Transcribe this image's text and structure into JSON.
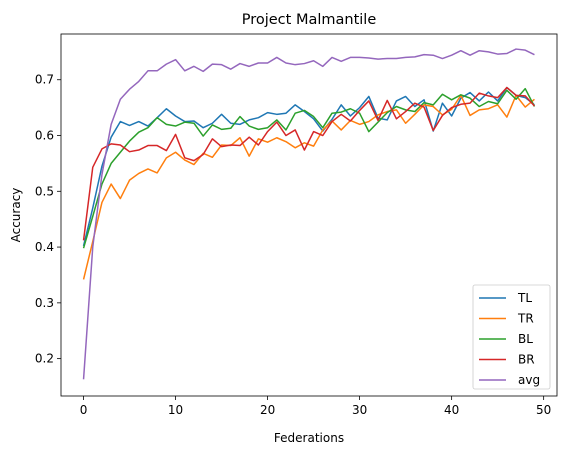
{
  "chart_data": {
    "type": "line",
    "title": "Project Malmantile",
    "xlabel": "Federations",
    "ylabel": "Accuracy",
    "xlim": [
      -2.45,
      51.45
    ],
    "ylim": [
      0.133,
      0.782
    ],
    "xticks": [
      0,
      10,
      20,
      30,
      40,
      50
    ],
    "yticks": [
      0.2,
      0.3,
      0.4,
      0.5,
      0.6,
      0.7
    ],
    "xtick_labels": [
      "0",
      "10",
      "20",
      "30",
      "40",
      "50"
    ],
    "ytick_labels": [
      "0.2",
      "0.3",
      "0.4",
      "0.5",
      "0.6",
      "0.7"
    ],
    "grid": false,
    "legend_position": "lower-right",
    "x": [
      0,
      1,
      2,
      3,
      4,
      5,
      6,
      7,
      8,
      9,
      10,
      11,
      12,
      13,
      14,
      15,
      16,
      17,
      18,
      19,
      20,
      21,
      22,
      23,
      24,
      25,
      26,
      27,
      28,
      29,
      30,
      31,
      32,
      33,
      34,
      35,
      36,
      37,
      38,
      39,
      40,
      41,
      42,
      43,
      44,
      45,
      46,
      47,
      48,
      49
    ],
    "series": [
      {
        "name": "TL",
        "color": "#1f77b4",
        "values": [
          0.402,
          0.47,
          0.545,
          0.597,
          0.625,
          0.618,
          0.625,
          0.617,
          0.632,
          0.648,
          0.635,
          0.625,
          0.626,
          0.614,
          0.622,
          0.638,
          0.622,
          0.62,
          0.628,
          0.632,
          0.641,
          0.638,
          0.64,
          0.655,
          0.643,
          0.63,
          0.608,
          0.629,
          0.655,
          0.635,
          0.65,
          0.67,
          0.631,
          0.628,
          0.662,
          0.67,
          0.652,
          0.664,
          0.608,
          0.658,
          0.635,
          0.667,
          0.677,
          0.662,
          0.678,
          0.662,
          0.686,
          0.672,
          0.668,
          0.655
        ]
      },
      {
        "name": "TR",
        "color": "#ff7f0e",
        "values": [
          0.342,
          0.41,
          0.48,
          0.513,
          0.487,
          0.52,
          0.532,
          0.54,
          0.533,
          0.56,
          0.57,
          0.556,
          0.548,
          0.568,
          0.561,
          0.583,
          0.582,
          0.596,
          0.563,
          0.594,
          0.588,
          0.596,
          0.589,
          0.578,
          0.587,
          0.581,
          0.61,
          0.626,
          0.61,
          0.627,
          0.62,
          0.625,
          0.637,
          0.643,
          0.646,
          0.622,
          0.638,
          0.655,
          0.652,
          0.637,
          0.647,
          0.672,
          0.636,
          0.646,
          0.648,
          0.655,
          0.633,
          0.672,
          0.651,
          0.665
        ]
      },
      {
        "name": "BL",
        "color": "#2ca02c",
        "values": [
          0.398,
          0.455,
          0.513,
          0.55,
          0.57,
          0.59,
          0.606,
          0.614,
          0.632,
          0.62,
          0.617,
          0.624,
          0.622,
          0.599,
          0.619,
          0.611,
          0.613,
          0.634,
          0.617,
          0.611,
          0.614,
          0.628,
          0.61,
          0.64,
          0.645,
          0.634,
          0.614,
          0.64,
          0.642,
          0.648,
          0.64,
          0.607,
          0.624,
          0.641,
          0.652,
          0.646,
          0.643,
          0.659,
          0.655,
          0.674,
          0.664,
          0.673,
          0.667,
          0.652,
          0.661,
          0.657,
          0.681,
          0.665,
          0.684,
          0.652
        ]
      },
      {
        "name": "BR",
        "color": "#d62728",
        "values": [
          0.412,
          0.543,
          0.576,
          0.585,
          0.583,
          0.571,
          0.574,
          0.582,
          0.582,
          0.573,
          0.602,
          0.56,
          0.555,
          0.566,
          0.594,
          0.58,
          0.583,
          0.582,
          0.597,
          0.583,
          0.607,
          0.624,
          0.6,
          0.61,
          0.574,
          0.607,
          0.6,
          0.625,
          0.638,
          0.626,
          0.645,
          0.662,
          0.627,
          0.663,
          0.63,
          0.643,
          0.658,
          0.651,
          0.609,
          0.636,
          0.65,
          0.656,
          0.658,
          0.676,
          0.671,
          0.668,
          0.686,
          0.672,
          0.671,
          0.653
        ]
      },
      {
        "name": "avg",
        "color": "#9467bd",
        "values": [
          0.163,
          0.4,
          0.53,
          0.62,
          0.665,
          0.683,
          0.697,
          0.716,
          0.716,
          0.728,
          0.736,
          0.716,
          0.724,
          0.715,
          0.728,
          0.727,
          0.719,
          0.729,
          0.724,
          0.73,
          0.73,
          0.74,
          0.73,
          0.727,
          0.729,
          0.734,
          0.724,
          0.74,
          0.733,
          0.74,
          0.74,
          0.739,
          0.737,
          0.738,
          0.738,
          0.74,
          0.741,
          0.745,
          0.744,
          0.738,
          0.744,
          0.752,
          0.744,
          0.752,
          0.75,
          0.746,
          0.747,
          0.755,
          0.753,
          0.745
        ]
      }
    ]
  }
}
